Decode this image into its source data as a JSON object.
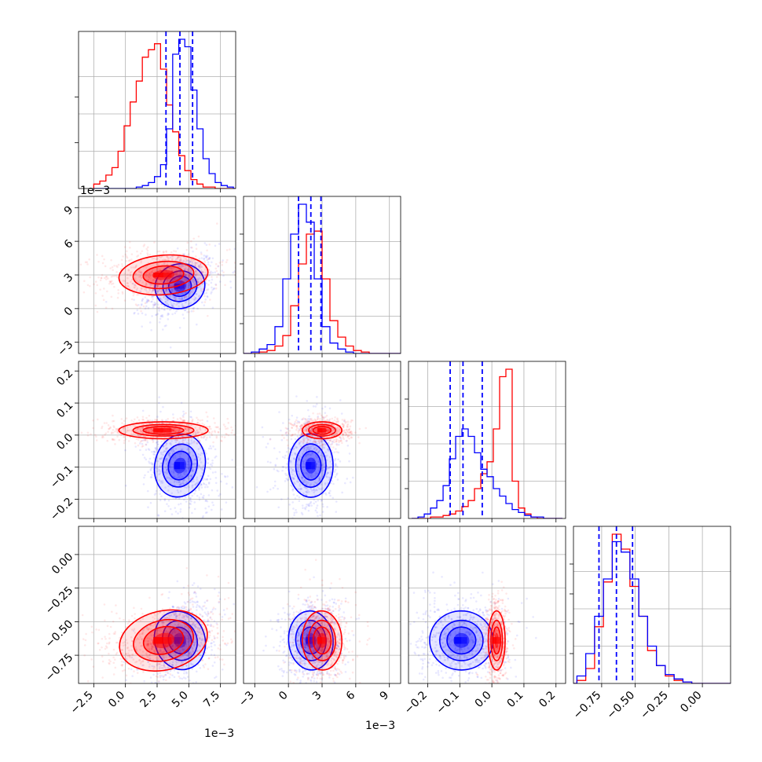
{
  "chart_data": {
    "type": "corner",
    "series": [
      {
        "name": "",
        "color": "#0000ff",
        "means": [
          0.0043,
          0.002,
          -0.095,
          -0.64
        ],
        "sds": [
          0.0009,
          0.0009,
          0.045,
          0.1
        ],
        "quantiles": [
          [
            0.0032,
            0.0043,
            0.0053
          ],
          [
            0.0009,
            0.002,
            0.0029
          ],
          [
            -0.13,
            -0.09,
            -0.03
          ],
          [
            -0.77,
            -0.64,
            -0.52
          ]
        ]
      },
      {
        "name": "",
        "color": "#ff0000",
        "means": [
          0.003,
          0.003,
          0.015,
          -0.64
        ],
        "sds": [
          0.0016,
          0.0008,
          0.012,
          0.1
        ],
        "quantiles": null
      }
    ],
    "histograms": [
      {
        "bins": [
          -0.0025,
          0.009
        ],
        "blue": [
          0,
          0,
          0,
          0,
          0,
          0,
          0,
          1,
          2,
          4,
          8,
          16,
          40,
          90,
          100,
          95,
          66,
          40,
          20,
          10,
          4,
          2,
          1,
          0
        ],
        "red": [
          3,
          5,
          9,
          14,
          25,
          42,
          58,
          72,
          88,
          93,
          97,
          80,
          56,
          38,
          22,
          12,
          6,
          3,
          1,
          1,
          0,
          0,
          0,
          0
        ]
      },
      {
        "bins": [
          -0.004,
          0.01
        ],
        "blue": [
          0,
          1,
          3,
          6,
          18,
          50,
          80,
          100,
          88,
          50,
          18,
          7,
          3,
          1,
          0,
          0,
          0,
          0,
          0,
          0
        ],
        "red": [
          0,
          0,
          1,
          2,
          5,
          12,
          32,
          60,
          80,
          82,
          50,
          22,
          11,
          5,
          2,
          1,
          0,
          0,
          0,
          0
        ]
      },
      {
        "bins": [
          -0.25,
          0.22
        ],
        "blue": [
          0,
          1,
          3,
          7,
          12,
          22,
          40,
          55,
          60,
          55,
          44,
          33,
          28,
          20,
          15,
          10,
          6,
          4,
          2,
          1,
          1,
          0,
          0,
          0
        ],
        "red": [
          0,
          0,
          0,
          1,
          1,
          2,
          3,
          5,
          8,
          12,
          20,
          30,
          38,
          60,
          95,
          100,
          25,
          7,
          3,
          1,
          0,
          0,
          0,
          0
        ]
      },
      {
        "bins": [
          -1.0,
          0.25
        ],
        "blue": [
          0,
          5,
          20,
          45,
          70,
          95,
          88,
          70,
          45,
          25,
          12,
          6,
          3,
          1,
          0,
          0,
          0,
          0,
          0
        ],
        "red": [
          0,
          2,
          10,
          38,
          68,
          100,
          90,
          65,
          45,
          22,
          12,
          5,
          2,
          1,
          0,
          0,
          0,
          0,
          0
        ]
      }
    ],
    "axes": [
      {
        "range": [
          -0.0037,
          0.0087
        ],
        "ticks": [
          -0.0025,
          0.0,
          0.0025,
          0.005,
          0.0075
        ],
        "tick_labels": [
          "−2.5",
          "0.0",
          "2.5",
          "5.0",
          "7.5"
        ],
        "offset_label": "1e−3",
        "label": ""
      },
      {
        "range": [
          -0.004,
          0.01
        ],
        "ticks": [
          -0.003,
          0.0,
          0.003,
          0.006,
          0.009
        ],
        "tick_labels": [
          "−3",
          "0",
          "3",
          "6",
          "9"
        ],
        "offset_label": "1e−3",
        "label": ""
      },
      {
        "range": [
          -0.26,
          0.23
        ],
        "ticks": [
          -0.2,
          -0.1,
          0.0,
          0.1,
          0.2
        ],
        "tick_labels": [
          "−0.2",
          "−0.1",
          "0.0",
          "0.1",
          "0.2"
        ],
        "offset_label": "",
        "label": ""
      },
      {
        "range": [
          -0.96,
          0.21
        ],
        "ticks": [
          -0.75,
          -0.5,
          -0.25,
          0.0
        ],
        "tick_labels": [
          "−0.75",
          "−0.50",
          "−0.25",
          "0.00"
        ],
        "offset_label": "",
        "label": ""
      }
    ],
    "grid": true,
    "legend": false
  }
}
